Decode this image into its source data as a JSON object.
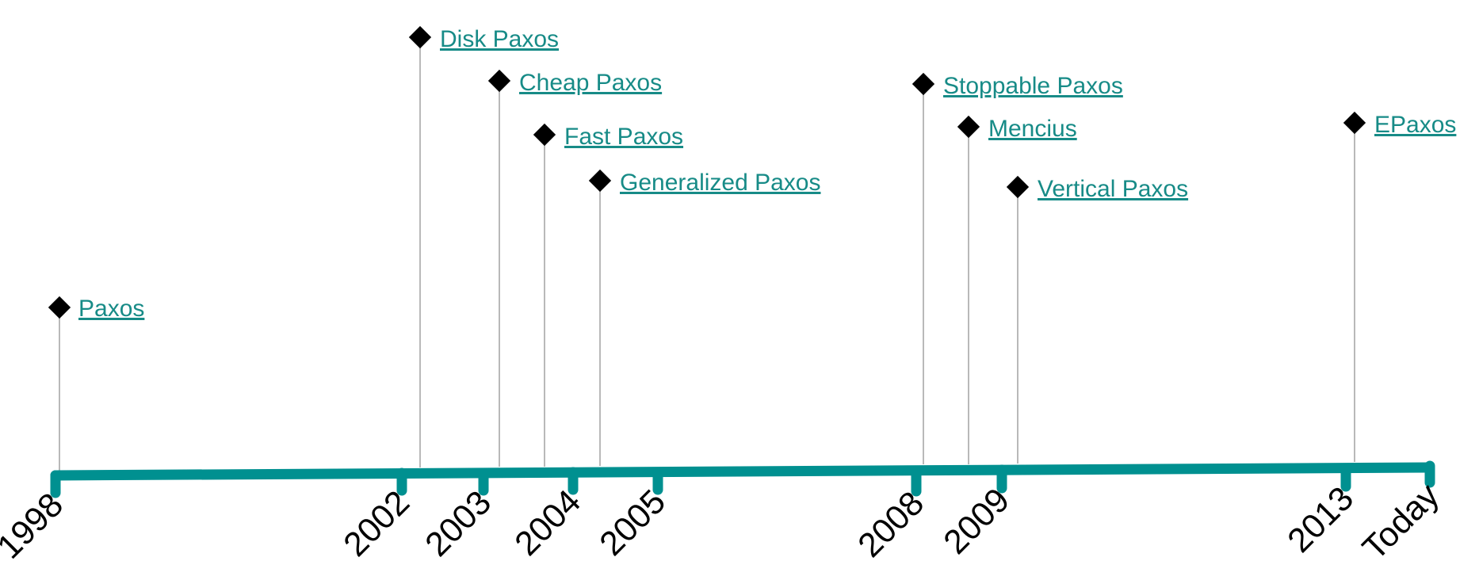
{
  "timeline": {
    "axis_color": "#009090",
    "link_color": "#178b87",
    "ticks": [
      {
        "label": "1998"
      },
      {
        "label": "2002"
      },
      {
        "label": "2003"
      },
      {
        "label": "2004"
      },
      {
        "label": "2005"
      },
      {
        "label": "2008"
      },
      {
        "label": "2009"
      },
      {
        "label": "2013"
      },
      {
        "label": "Today"
      }
    ],
    "events": [
      {
        "label": "Paxos",
        "year": "1998"
      },
      {
        "label": "Disk Paxos",
        "year": "2002"
      },
      {
        "label": "Cheap Paxos",
        "year": "2003"
      },
      {
        "label": "Fast Paxos",
        "year": "2004"
      },
      {
        "label": "Generalized Paxos",
        "year": "2005"
      },
      {
        "label": "Stoppable Paxos",
        "year": "2008"
      },
      {
        "label": "Mencius",
        "year": "2009"
      },
      {
        "label": "Vertical Paxos",
        "year": "2009"
      },
      {
        "label": "EPaxos",
        "year": "2013"
      }
    ]
  }
}
